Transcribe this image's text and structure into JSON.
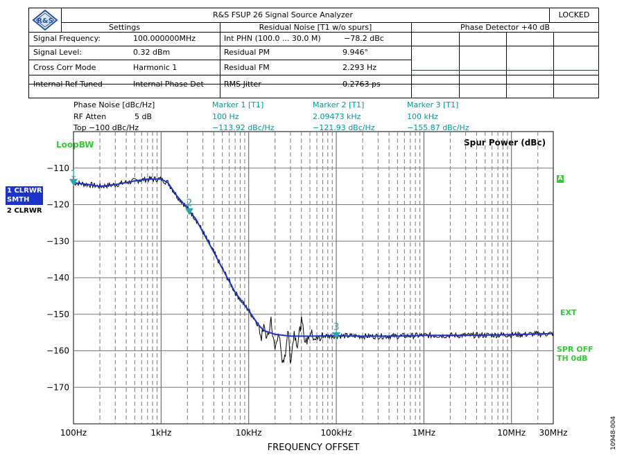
{
  "header": {
    "title": "R&S FSUP 26 Signal Source Analyzer",
    "status": "LOCKED",
    "logo_text": "R&S",
    "settings_title": "Settings",
    "residual_title": "Residual Noise [T1 w/o spurs]",
    "phase_title": "Phase Detector +40 dB",
    "settings": [
      {
        "label": "Signal Frequency:",
        "value": "100.000000MHz"
      },
      {
        "label": "Signal Level:",
        "value": "0.32 dBm"
      },
      {
        "label": "Cross Corr Mode",
        "value": "Harmonic 1"
      },
      {
        "label": "Internal Ref Tuned",
        "value": "Internal Phase Det"
      }
    ],
    "residual": [
      {
        "label": "Int PHN (100.0 ... 30.0 M)",
        "value": "−78.2 dBc"
      },
      {
        "label": "Residual PM",
        "value": "9.946°"
      },
      {
        "label": "Residual FM",
        "value": "2.293 Hz"
      },
      {
        "label": "RMS Jitter",
        "value": "0.2763 ps"
      }
    ]
  },
  "info": {
    "col1": [
      "Phase Noise [dBc/Hz]",
      "RF Atten",
      "Top  −100 dBc/Hz"
    ],
    "col1_values": [
      "",
      "5 dB",
      ""
    ],
    "markers": [
      {
        "title": "Marker 1 [T1]",
        "freq": "100 Hz",
        "level": "−113.92 dBc/Hz"
      },
      {
        "title": "Marker 2 [T1]",
        "freq": "2.09473 kHz",
        "level": "−121.93 dBc/Hz"
      },
      {
        "title": "Marker 3 [T1]",
        "freq": "100 kHz",
        "level": "−155.87 dBc/Hz"
      }
    ]
  },
  "side_labels": {
    "loopbw": "LoopBW",
    "spur_power": "Spur Power (dBc)",
    "trace1_a": "1 CLRWR",
    "trace1_b": "SMTH 1%",
    "trace2": "2 CLRWR",
    "a_flag": "A",
    "ext": "EXT",
    "spr_off": "SPR OFF",
    "th": "TH 0dB",
    "figure_id": "10948-004"
  },
  "colors": {
    "trace_smooth": "#1a33cc",
    "trace_raw": "#000000",
    "marker": "#2aa6a6",
    "label_green": "#33cc33",
    "label_cyan": "#009999"
  },
  "chart_data": {
    "type": "line",
    "xscale": "log",
    "xlabel": "FREQUENCY OFFSET",
    "ylabel": "",
    "xlim": [
      100,
      30000000
    ],
    "ylim": [
      -180,
      -100
    ],
    "yticks": [
      -110,
      -120,
      -130,
      -140,
      -150,
      -160,
      -170
    ],
    "xtick_labels": [
      {
        "x": 100,
        "label": "100Hz"
      },
      {
        "x": 1000,
        "label": "1kHz"
      },
      {
        "x": 10000,
        "label": "10kHz"
      },
      {
        "x": 100000,
        "label": "100kHz"
      },
      {
        "x": 1000000,
        "label": "1MHz"
      },
      {
        "x": 10000000,
        "label": "10MHz"
      },
      {
        "x": 30000000,
        "label": "30MHz"
      }
    ],
    "grid": true,
    "series": [
      {
        "style": "smoothed",
        "x": [
          100,
          150,
          200,
          300,
          500,
          700,
          1000,
          1200,
          1500,
          2000,
          2500,
          3000,
          4000,
          5000,
          7000,
          10000,
          13000,
          15000,
          20000,
          30000,
          50000,
          100000,
          200000,
          500000,
          1000000,
          3000000,
          10000000,
          20000000,
          30000000
        ],
        "y": [
          -114,
          -114.5,
          -115,
          -114.5,
          -113.5,
          -113,
          -113,
          -114,
          -117.5,
          -121,
          -124,
          -127.5,
          -133,
          -137.5,
          -144,
          -149,
          -153,
          -154.5,
          -155.5,
          -156,
          -156,
          -155.9,
          -156,
          -156,
          -155.8,
          -155.8,
          -155.6,
          -155.4,
          -155.3
        ]
      },
      {
        "style": "raw",
        "x": [
          13000,
          14000,
          15000,
          16000,
          18000,
          20000,
          22000,
          25000,
          28000,
          30000,
          33000,
          36000,
          40000,
          45000,
          50000,
          60000,
          70000
        ],
        "y": [
          -153,
          -156,
          -151.5,
          -158,
          -152,
          -160,
          -155,
          -165,
          -154,
          -163,
          -155,
          -158,
          -152,
          -158,
          -155,
          -157,
          -156
        ]
      }
    ],
    "markers": [
      {
        "label": "1",
        "x": 100,
        "y": -113.92
      },
      {
        "label": "2",
        "x": 2094.73,
        "y": -121.93
      },
      {
        "label": "3",
        "x": 100000,
        "y": -155.87
      }
    ]
  }
}
